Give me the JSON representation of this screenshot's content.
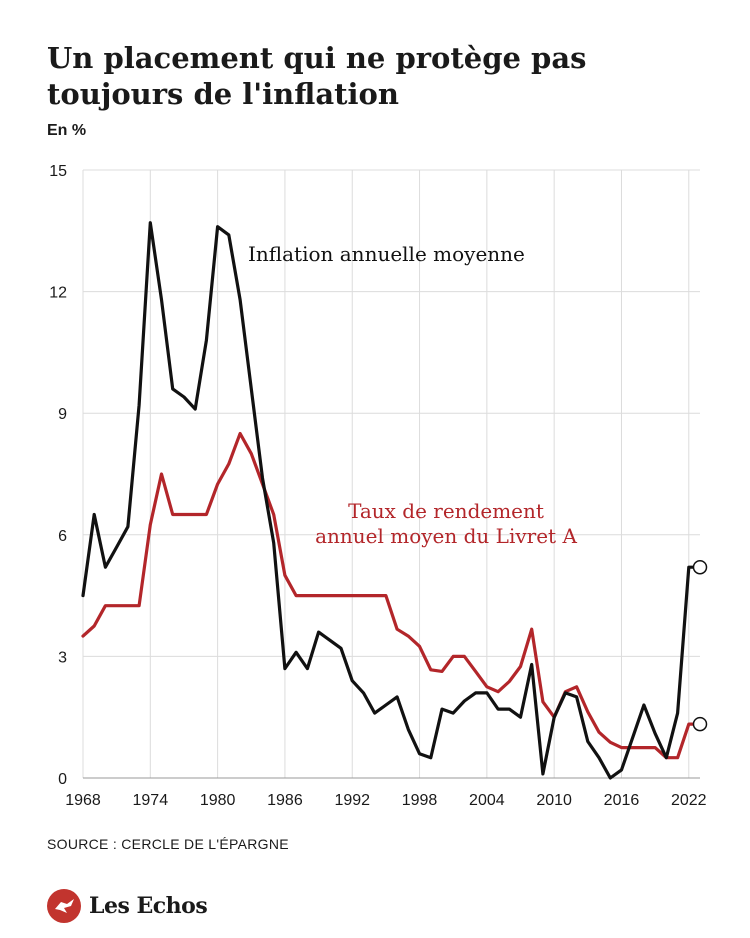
{
  "title": "Un placement qui ne protège pas toujours de l'inflation",
  "unit_label": "En %",
  "source": "SOURCE : CERCLE DE L'ÉPARGNE",
  "brand": "Les Echos",
  "colors": {
    "inflation": "#111111",
    "livret": "#b3262a",
    "grid": "#dcdcdc",
    "text": "#1a1a1a"
  },
  "chart_data": {
    "type": "line",
    "xlim": [
      1968,
      2023
    ],
    "ylim": [
      0,
      15
    ],
    "yticks": [
      0,
      3,
      6,
      9,
      12,
      15
    ],
    "xticks": [
      1968,
      1974,
      1980,
      1986,
      1992,
      1998,
      2004,
      2010,
      2016,
      2022
    ],
    "xtick_labels": [
      "1968",
      "1974",
      "1980",
      "1986",
      "1992",
      "1998",
      "2004",
      "2010",
      "2016",
      "2022"
    ],
    "x": [
      1968,
      1969,
      1970,
      1971,
      1972,
      1973,
      1974,
      1975,
      1976,
      1977,
      1978,
      1979,
      1980,
      1981,
      1982,
      1983,
      1984,
      1985,
      1986,
      1987,
      1988,
      1989,
      1990,
      1991,
      1992,
      1993,
      1994,
      1995,
      1996,
      1997,
      1998,
      1999,
      2000,
      2001,
      2002,
      2003,
      2004,
      2005,
      2006,
      2007,
      2008,
      2009,
      2010,
      2011,
      2012,
      2013,
      2014,
      2015,
      2016,
      2017,
      2018,
      2019,
      2020,
      2021,
      2022,
      2023
    ],
    "series": [
      {
        "name": "Inflation annuelle moyenne",
        "color": "#111111",
        "values": [
          4.5,
          6.5,
          5.2,
          5.7,
          6.2,
          9.2,
          13.7,
          11.8,
          9.6,
          9.4,
          9.1,
          10.8,
          13.6,
          13.4,
          11.8,
          9.6,
          7.4,
          5.8,
          2.7,
          3.1,
          2.7,
          3.6,
          3.4,
          3.2,
          2.4,
          2.1,
          1.6,
          1.8,
          2.0,
          1.2,
          0.6,
          0.5,
          1.7,
          1.6,
          1.9,
          2.1,
          2.1,
          1.7,
          1.7,
          1.5,
          2.8,
          0.1,
          1.5,
          2.1,
          2.0,
          0.9,
          0.5,
          0.0,
          0.2,
          1.0,
          1.8,
          1.1,
          0.5,
          1.6,
          5.2,
          5.2
        ],
        "end_marker": true
      },
      {
        "name": "Taux de rendement annuel moyen du Livret A",
        "color": "#b3262a",
        "values": [
          3.5,
          3.75,
          4.25,
          4.25,
          4.25,
          4.25,
          6.25,
          7.5,
          6.5,
          6.5,
          6.5,
          6.5,
          7.25,
          7.75,
          8.5,
          8.0,
          7.25,
          6.5,
          5.0,
          4.5,
          4.5,
          4.5,
          4.5,
          4.5,
          4.5,
          4.5,
          4.5,
          4.5,
          3.67,
          3.5,
          3.25,
          2.67,
          2.63,
          3.0,
          3.0,
          2.63,
          2.25,
          2.13,
          2.38,
          2.75,
          3.67,
          1.88,
          1.5,
          2.13,
          2.25,
          1.63,
          1.13,
          0.88,
          0.75,
          0.75,
          0.75,
          0.75,
          0.5,
          0.5,
          1.33,
          1.33
        ],
        "end_marker": true
      }
    ],
    "annotations": [
      "Inflation annuelle moyenne",
      "Taux de rendement",
      "annuel moyen du Livret A"
    ]
  }
}
